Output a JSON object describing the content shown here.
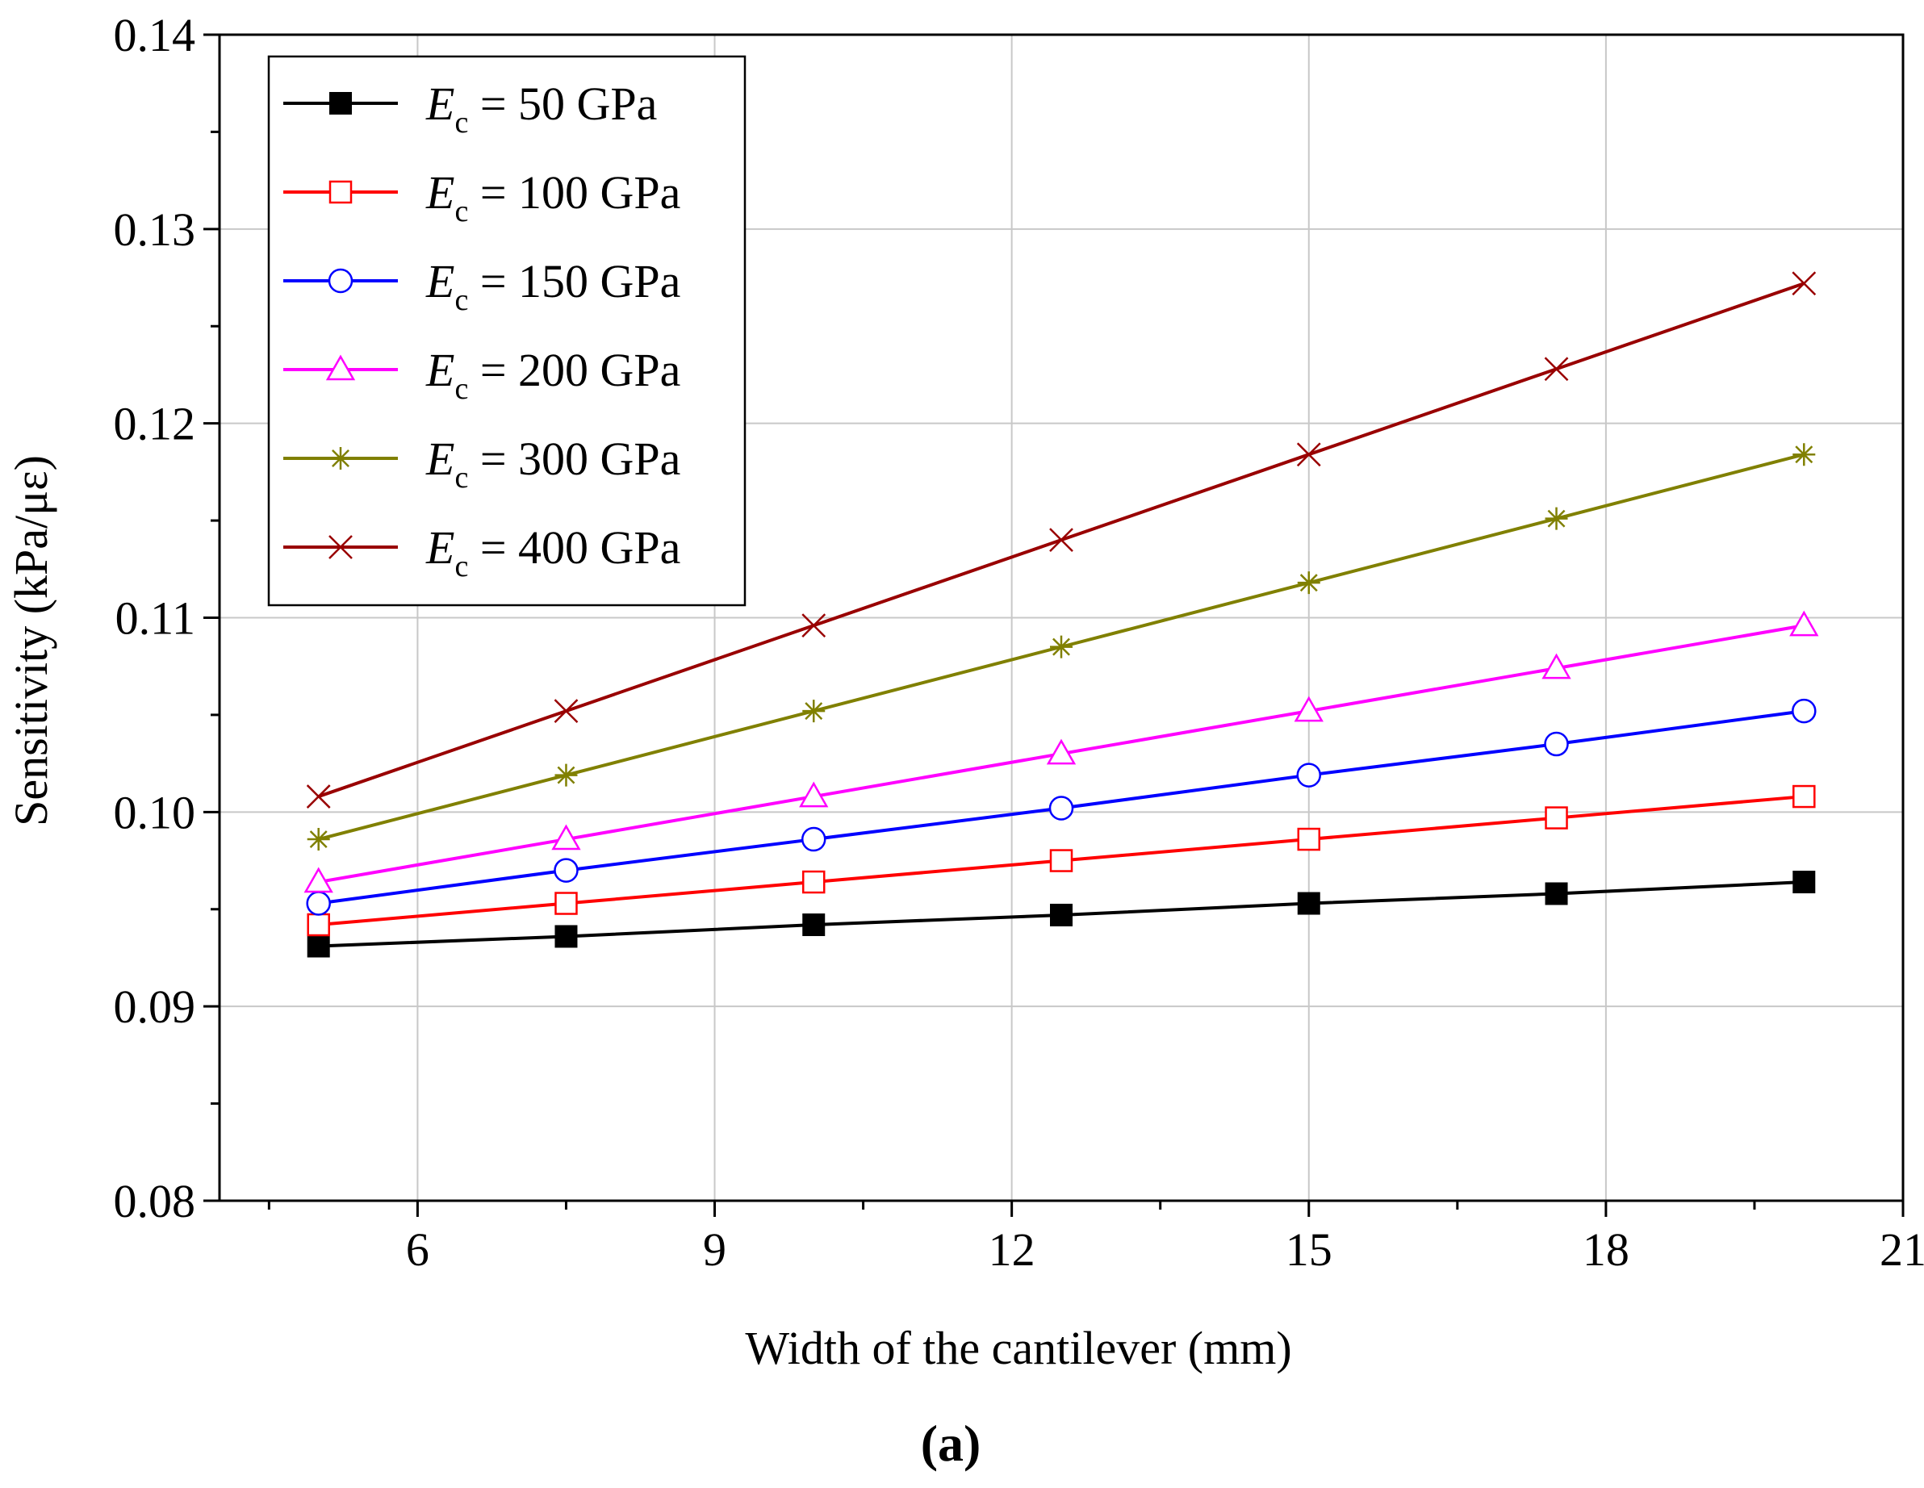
{
  "chart_data": {
    "type": "line",
    "xlabel": "Width of the cantilever (mm)",
    "ylabel": "Sensitivity (kPa/με)",
    "xlim": [
      4,
      21
    ],
    "ylim": [
      0.08,
      0.14
    ],
    "xticks": [
      6,
      9,
      12,
      15,
      18,
      21
    ],
    "yticks": [
      0.08,
      0.09,
      0.1,
      0.11,
      0.12,
      0.13,
      0.14
    ],
    "ytick_labels": [
      "0.08",
      "0.09",
      "0.10",
      "0.11",
      "0.12",
      "0.13",
      "0.14"
    ],
    "grid": true,
    "legend_position": "top-left",
    "x": [
      5,
      7.5,
      10,
      12.5,
      15,
      17.5,
      20
    ],
    "series": [
      {
        "name": "Ec = 50 GPa",
        "symbol": "E",
        "subscript": "c",
        "value_text": "= 50 GPa",
        "color": "#000000",
        "marker": "square-filled",
        "values": [
          0.0931,
          0.0936,
          0.0942,
          0.0947,
          0.0953,
          0.0958,
          0.0964
        ]
      },
      {
        "name": "Ec = 100 GPa",
        "symbol": "E",
        "subscript": "c",
        "value_text": "= 100 GPa",
        "color": "#ff0000",
        "marker": "square-open",
        "values": [
          0.0942,
          0.0953,
          0.0964,
          0.0975,
          0.0986,
          0.0997,
          0.1008
        ]
      },
      {
        "name": "Ec = 150 GPa",
        "symbol": "E",
        "subscript": "c",
        "value_text": "= 150 GPa",
        "color": "#0000ff",
        "marker": "circle-open",
        "values": [
          0.0953,
          0.097,
          0.0986,
          0.1002,
          0.1019,
          0.1035,
          0.1052
        ]
      },
      {
        "name": "Ec = 200 GPa",
        "symbol": "E",
        "subscript": "c",
        "value_text": "= 200 GPa",
        "color": "#ff00ff",
        "marker": "triangle-open",
        "values": [
          0.0964,
          0.0986,
          0.1008,
          0.103,
          0.1052,
          0.1074,
          0.1096
        ]
      },
      {
        "name": "Ec = 300 GPa",
        "symbol": "E",
        "subscript": "c",
        "value_text": "= 300 GPa",
        "color": "#808000",
        "marker": "star",
        "values": [
          0.0986,
          0.1019,
          0.1052,
          0.1085,
          0.1118,
          0.1151,
          0.1184
        ]
      },
      {
        "name": "Ec = 400 GPa",
        "symbol": "E",
        "subscript": "c",
        "value_text": "= 400 GPa",
        "color": "#990000",
        "marker": "x",
        "values": [
          0.1008,
          0.1052,
          0.1096,
          0.114,
          0.1184,
          0.1228,
          0.1272
        ]
      }
    ]
  },
  "panel_label": "(a)"
}
